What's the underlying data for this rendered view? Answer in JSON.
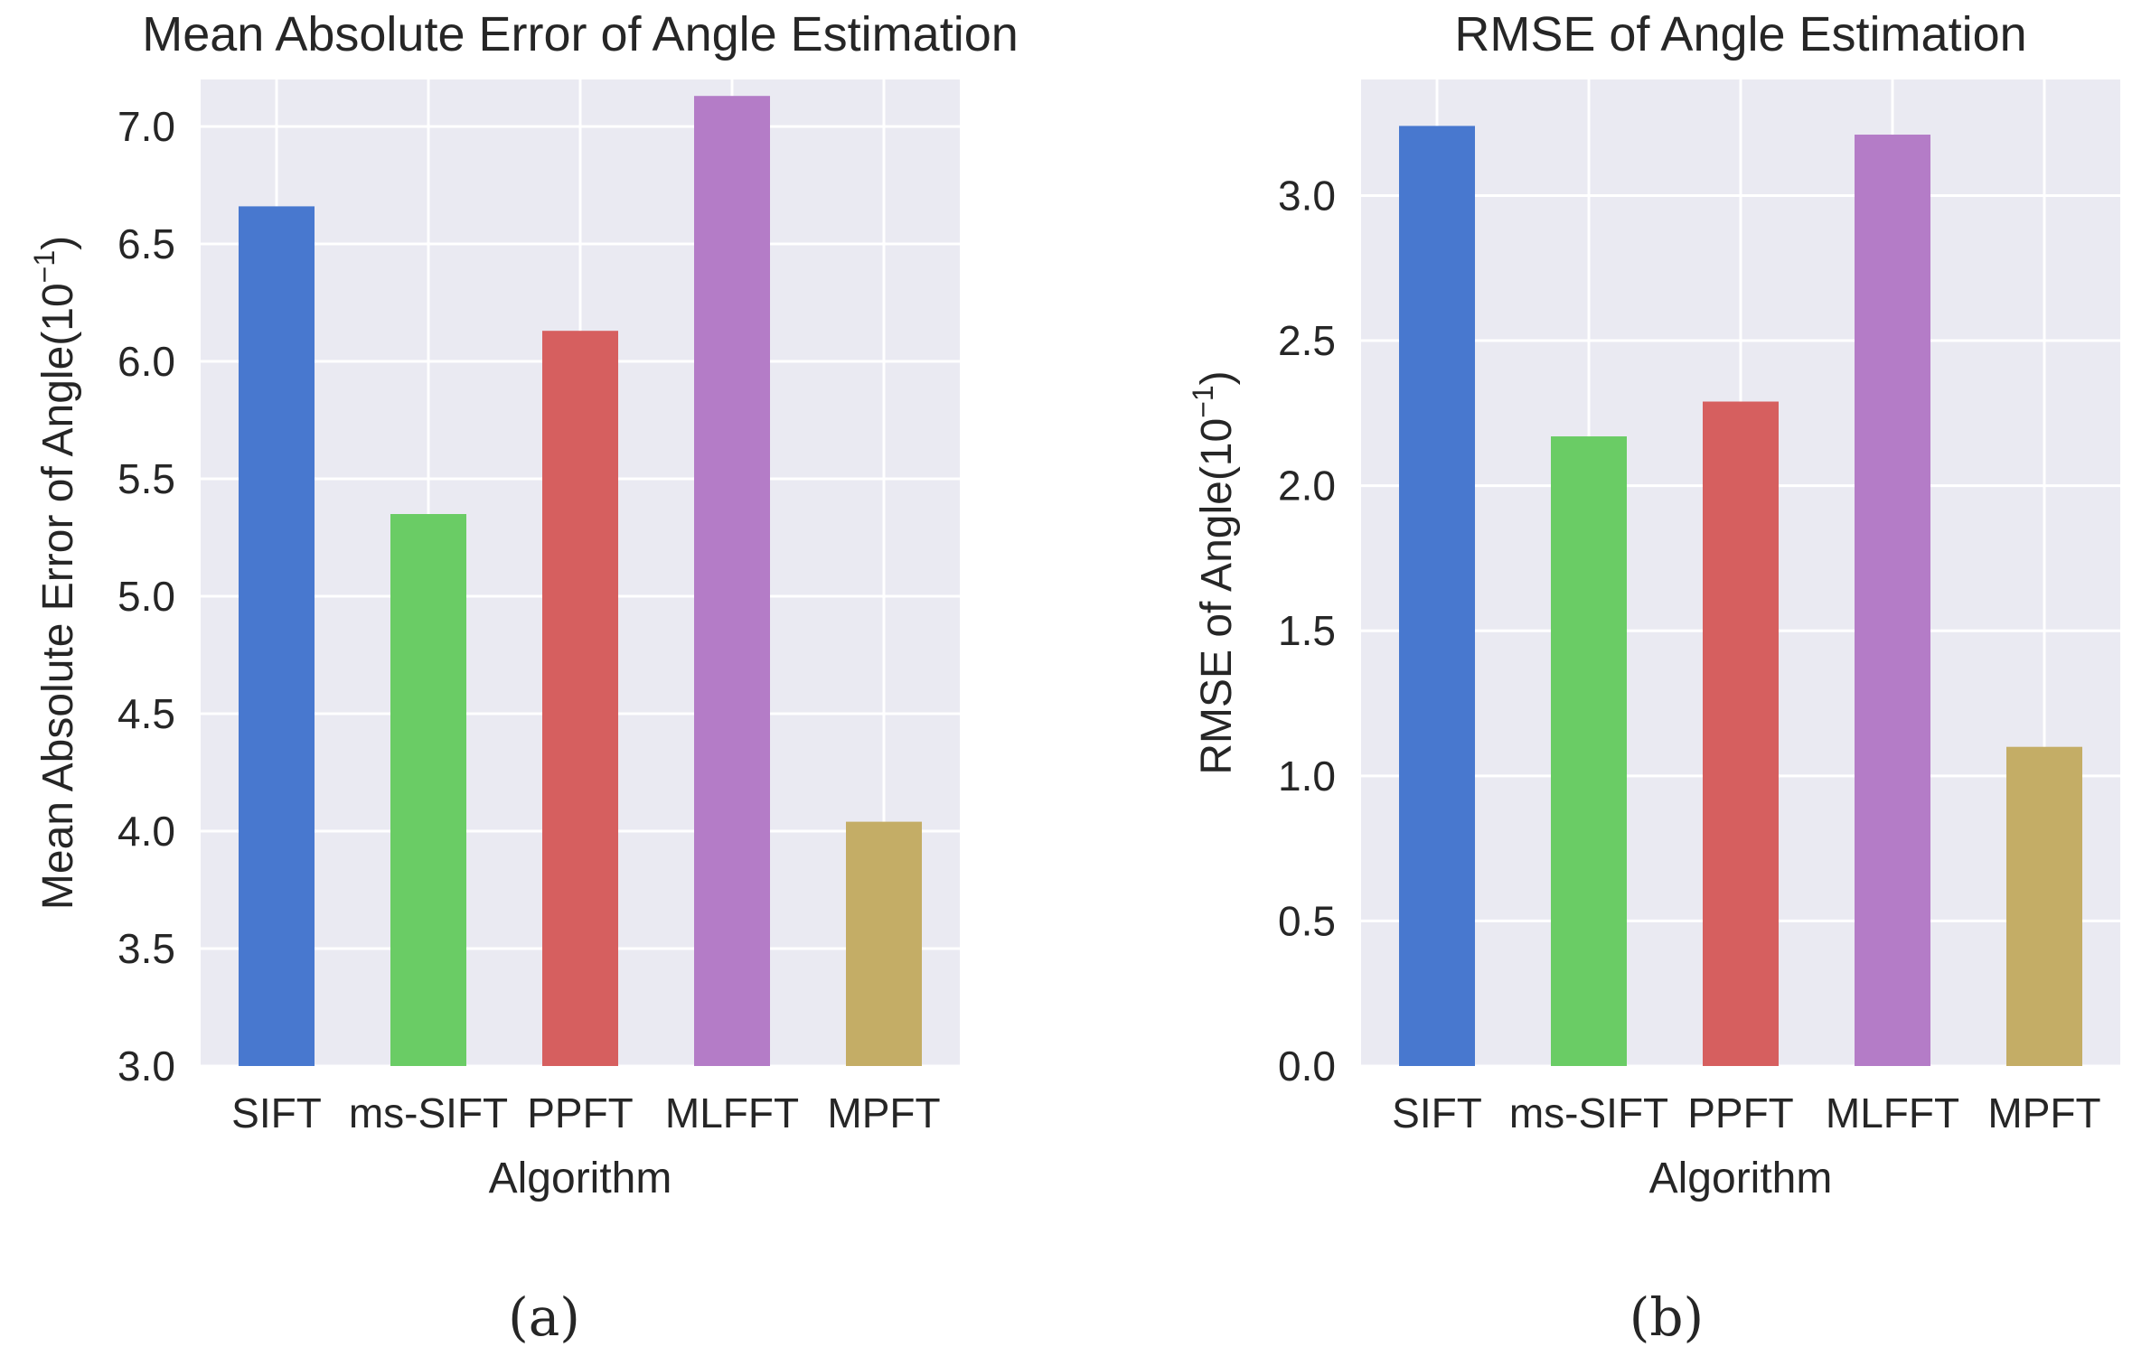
{
  "chart_data": [
    {
      "type": "bar",
      "title": "Mean Absolute Error of Angle Estimation",
      "xlabel": "Algorithm",
      "ylabel": "Mean Absolute Error of Angle(10",
      "ylabel_exponent": "−1",
      "ylabel_close": ")",
      "categories": [
        "SIFT",
        "ms-SIFT",
        "PPFT",
        "MLFFT",
        "MPFT"
      ],
      "values": [
        6.66,
        5.35,
        6.13,
        7.13,
        4.04
      ],
      "colors": [
        "#4878cf",
        "#6acc65",
        "#d65f5f",
        "#b47cc7",
        "#c4ad66"
      ],
      "ylim": [
        3.0,
        7.2
      ],
      "yticks": [
        3.0,
        3.5,
        4.0,
        4.5,
        5.0,
        5.5,
        6.0,
        6.5,
        7.0
      ],
      "ytick_labels": [
        "3.0",
        "3.5",
        "4.0",
        "4.5",
        "5.0",
        "5.5",
        "6.0",
        "6.5",
        "7.0"
      ],
      "grid": true,
      "panel_label": "(a)"
    },
    {
      "type": "bar",
      "title": "RMSE of Angle Estimation",
      "xlabel": "Algorithm",
      "ylabel": "RMSE of Angle(10",
      "ylabel_exponent": "−1",
      "ylabel_close": ")",
      "categories": [
        "SIFT",
        "ms-SIFT",
        "PPFT",
        "MLFFT",
        "MPFT"
      ],
      "values": [
        3.24,
        2.17,
        2.29,
        3.21,
        1.1
      ],
      "colors": [
        "#4878cf",
        "#6acc65",
        "#d65f5f",
        "#b47cc7",
        "#c4ad66"
      ],
      "ylim": [
        0.0,
        3.4
      ],
      "yticks": [
        0.0,
        0.5,
        1.0,
        1.5,
        2.0,
        2.5,
        3.0
      ],
      "ytick_labels": [
        "0.0",
        "0.5",
        "1.0",
        "1.5",
        "2.0",
        "2.5",
        "3.0"
      ],
      "grid": true,
      "panel_label": "(b)"
    }
  ],
  "colors": {
    "background": "#eaeaf2",
    "grid": "#ffffff",
    "text": "#262626"
  }
}
